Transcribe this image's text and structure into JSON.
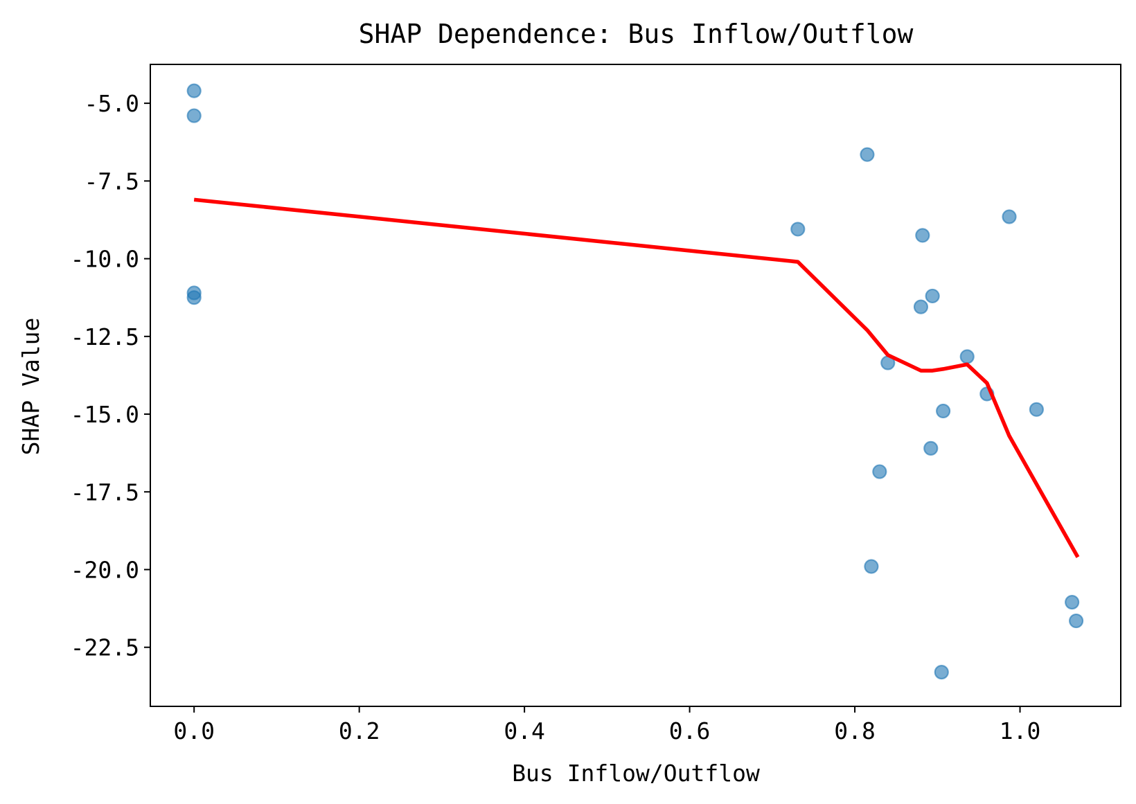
{
  "chart_data": {
    "type": "scatter",
    "title": "SHAP Dependence: Bus Inflow/Outflow",
    "xlabel": "Bus Inflow/Outflow",
    "ylabel": "SHAP Value",
    "xlim": [
      -0.053,
      1.122
    ],
    "ylim": [
      -24.4,
      -3.75
    ],
    "xticks": [
      0.0,
      0.2,
      0.4,
      0.6,
      0.8,
      1.0
    ],
    "xtick_labels": [
      "0.0",
      "0.2",
      "0.4",
      "0.6",
      "0.8",
      "1.0"
    ],
    "yticks": [
      -5.0,
      -7.5,
      -10.0,
      -12.5,
      -15.0,
      -17.5,
      -20.0,
      -22.5
    ],
    "ytick_labels": [
      "-5.0",
      "-7.5",
      "-10.0",
      "-12.5",
      "-15.0",
      "-17.5",
      "-20.0",
      "-22.5"
    ],
    "grid": false,
    "series": [
      {
        "kind": "scatter",
        "color": "#1f77b4",
        "points": [
          {
            "x": 0.0,
            "y": -4.6
          },
          {
            "x": 0.0,
            "y": -5.4
          },
          {
            "x": 0.0,
            "y": -11.1
          },
          {
            "x": 0.0,
            "y": -11.25
          },
          {
            "x": 0.731,
            "y": -9.05
          },
          {
            "x": 0.815,
            "y": -6.65
          },
          {
            "x": 0.82,
            "y": -19.9
          },
          {
            "x": 0.83,
            "y": -16.85
          },
          {
            "x": 0.84,
            "y": -13.35
          },
          {
            "x": 0.88,
            "y": -11.55
          },
          {
            "x": 0.882,
            "y": -9.25
          },
          {
            "x": 0.892,
            "y": -16.1
          },
          {
            "x": 0.894,
            "y": -11.2
          },
          {
            "x": 0.905,
            "y": -23.3
          },
          {
            "x": 0.907,
            "y": -14.9
          },
          {
            "x": 0.936,
            "y": -13.15
          },
          {
            "x": 0.96,
            "y": -14.35
          },
          {
            "x": 0.987,
            "y": -8.65
          },
          {
            "x": 1.02,
            "y": -14.85
          },
          {
            "x": 1.063,
            "y": -21.05
          },
          {
            "x": 1.068,
            "y": -21.65
          }
        ]
      },
      {
        "kind": "line",
        "color": "#ff0000",
        "points": [
          {
            "x": 0.0,
            "y": -8.1
          },
          {
            "x": 0.731,
            "y": -10.1
          },
          {
            "x": 0.815,
            "y": -12.3
          },
          {
            "x": 0.84,
            "y": -13.1
          },
          {
            "x": 0.88,
            "y": -13.6
          },
          {
            "x": 0.894,
            "y": -13.6
          },
          {
            "x": 0.907,
            "y": -13.55
          },
          {
            "x": 0.936,
            "y": -13.4
          },
          {
            "x": 0.96,
            "y": -14.0
          },
          {
            "x": 0.987,
            "y": -15.7
          },
          {
            "x": 1.07,
            "y": -19.6
          }
        ]
      }
    ]
  }
}
